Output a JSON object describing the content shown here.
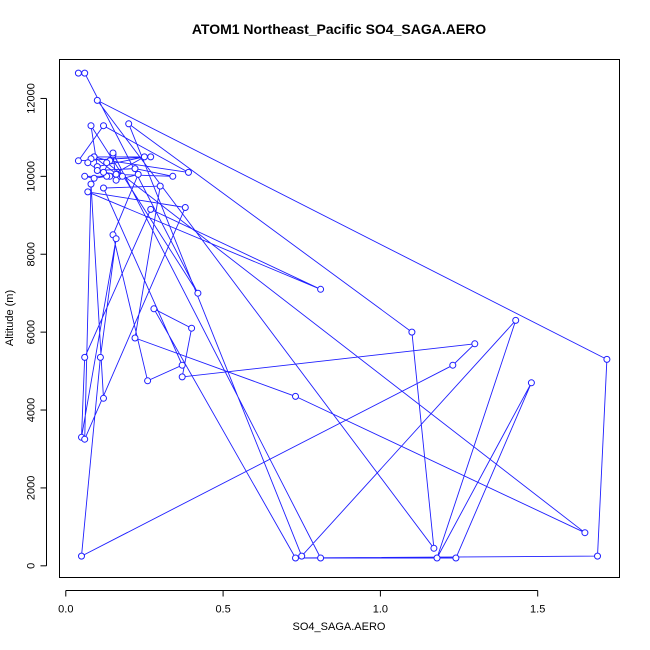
{
  "chart_data": {
    "type": "line",
    "title": "ATOM1 Northeast_Pacific SO4_SAGA.AERO",
    "xlabel": "SO4_SAGA.AERO",
    "ylabel": "Altitude (m)",
    "xlim": [
      -0.02,
      1.76
    ],
    "ylim": [
      -300,
      13000
    ],
    "xticks": [
      0.0,
      0.5,
      1.0,
      1.5
    ],
    "xtick_labels": [
      "0.0",
      "0.5",
      "1.0",
      "1.5"
    ],
    "yticks": [
      0,
      2000,
      4000,
      6000,
      8000,
      10000,
      12000
    ],
    "ytick_labels": [
      "0",
      "2000",
      "4000",
      "6000",
      "8000",
      "10000",
      "12000"
    ],
    "grid": false,
    "markers": "open-circle",
    "color": "#1f1fff",
    "series": [
      {
        "x": [
          0.04,
          0.06,
          0.42,
          0.08,
          0.1,
          0.25,
          0.14,
          0.17,
          0.09,
          0.14,
          0.39,
          0.12,
          0.04,
          0.27,
          0.09,
          0.08,
          0.07,
          0.13,
          0.09,
          0.06,
          0.18,
          0.1,
          0.22,
          0.34,
          0.16,
          0.12,
          0.15,
          0.16,
          0.23,
          0.15,
          0.26,
          0.37,
          0.12,
          0.3,
          0.22,
          0.73,
          1.65,
          0.13,
          0.15,
          0.81,
          1.24,
          1.48,
          1.18,
          1.43,
          0.75,
          0.2,
          1.1,
          1.17,
          0.1,
          1.72,
          1.69,
          0.73,
          0.28,
          0.4,
          0.37,
          1.3,
          1.23,
          0.05,
          0.11,
          0.16,
          0.05,
          0.06,
          0.27,
          0.81,
          0.07,
          0.38,
          0.06,
          0.08,
          0.12
        ],
        "y": [
          12650,
          12650,
          7000,
          11300,
          10250,
          10500,
          10000,
          10000,
          10500,
          10400,
          10100,
          11300,
          10400,
          10500,
          10500,
          10450,
          10350,
          10000,
          9950,
          10000,
          10000,
          10150,
          10200,
          10000,
          10050,
          10100,
          10550,
          9900,
          10050,
          8500,
          4750,
          5150,
          9700,
          9750,
          5850,
          4350,
          850,
          10350,
          10600,
          200,
          200,
          4700,
          200,
          6300,
          250,
          11350,
          6000,
          450,
          11950,
          5300,
          250,
          200,
          6600,
          6100,
          4850,
          5700,
          5150,
          250,
          5350,
          8400,
          3300,
          5350,
          9150,
          7100,
          9600,
          9200,
          3250,
          9800,
          4300
        ]
      }
    ]
  }
}
